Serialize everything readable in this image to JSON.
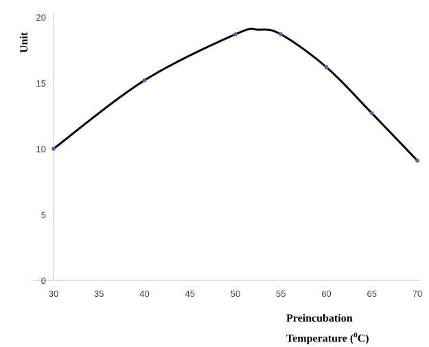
{
  "chart_data": {
    "type": "line",
    "title": "",
    "xlabel_line1": "Preincubation",
    "xlabel_line2_prefix": "Temperature (",
    "xlabel_superscript": "0",
    "xlabel_line2_suffix": "C)",
    "ylabel": "Unit",
    "x": [
      30,
      40,
      50,
      55,
      60,
      65,
      70
    ],
    "series": [
      {
        "values": [
          10.0,
          15.2,
          18.7,
          18.7,
          16.2,
          12.7,
          9.1
        ]
      }
    ],
    "smooth_peak": {
      "x": 52.5,
      "y": 19.05
    },
    "xlim": [
      30,
      70
    ],
    "ylim": [
      0,
      20
    ],
    "xticks": [
      30,
      35,
      40,
      45,
      50,
      55,
      60,
      65,
      70
    ],
    "yticks": [
      0,
      5,
      10,
      15,
      20
    ],
    "grid": false,
    "legend": "none",
    "line_color": "#000000",
    "marker_color": "#4a6fb5"
  }
}
